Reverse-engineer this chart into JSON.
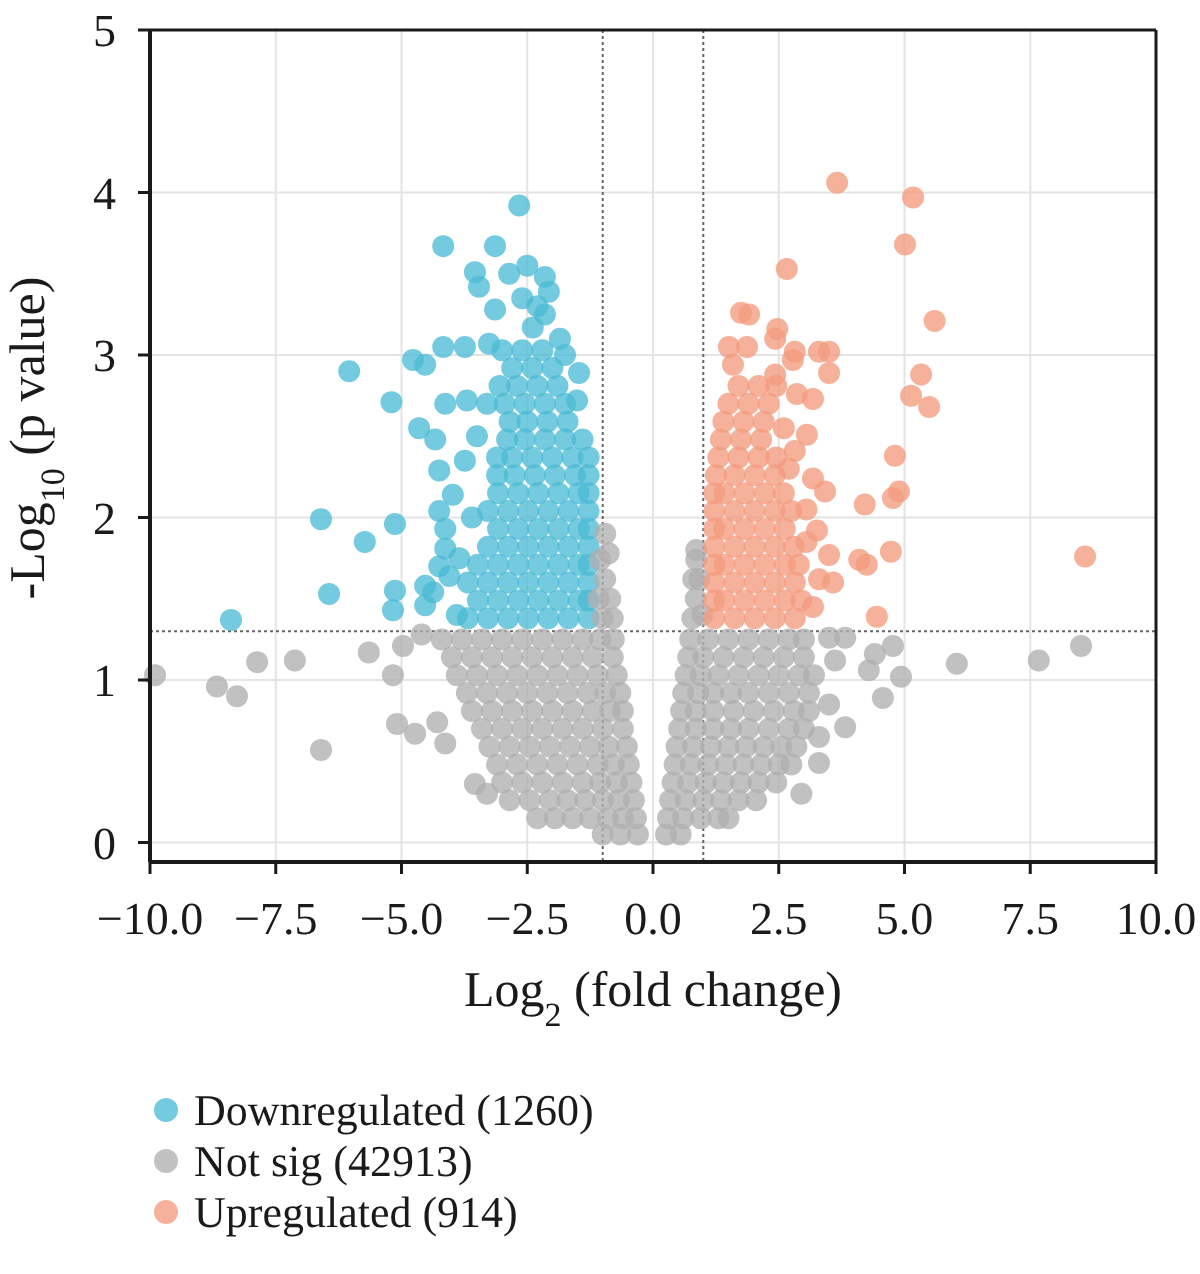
{
  "chart_data": {
    "type": "scatter",
    "xlabel": "Log$_{2}$ (fold change)",
    "ylabel": "-Log$_{10}$ (p value)",
    "xlim": [
      -10,
      10
    ],
    "ylim": [
      -0.12,
      5
    ],
    "xticks": [
      {
        "value": -10,
        "label": "−10.0"
      },
      {
        "value": -7.5,
        "label": "−7.5"
      },
      {
        "value": -5,
        "label": "−5.0"
      },
      {
        "value": -2.5,
        "label": "−2.5"
      },
      {
        "value": 0,
        "label": "0.0"
      },
      {
        "value": 2.5,
        "label": "2.5"
      },
      {
        "value": 5,
        "label": "5.0"
      },
      {
        "value": 7.5,
        "label": "7.5"
      },
      {
        "value": 10,
        "label": "10.0"
      }
    ],
    "yticks": [
      0,
      1,
      2,
      3,
      4,
      5
    ],
    "grid": true,
    "legend": "bottom left",
    "marker": "circle",
    "ref_lines": [
      {
        "axis": "x",
        "value": -1,
        "color": "#666666",
        "line_style": "dotted"
      },
      {
        "axis": "x",
        "value": 1,
        "color": "#666666",
        "line_style": "dotted"
      },
      {
        "axis": "y",
        "value": 1.3,
        "color": "#666666",
        "line_style": "dotted"
      }
    ],
    "series": [
      {
        "name": "Downregulated (1260)",
        "color": "#4dbbd5",
        "x": [
          -1.28,
          -1.68,
          -2.08,
          -2.48,
          -2.88,
          -3.28,
          -3.68,
          -1.28,
          -1.48,
          -1.88,
          -2.28,
          -2.68,
          -3.08,
          -3.48,
          -1.28,
          -1.68,
          -2.08,
          -2.48,
          -2.88,
          -3.28,
          -3.68,
          -1.28,
          -1.48,
          -1.88,
          -2.28,
          -2.68,
          -3.08,
          -3.48,
          -1.28,
          -1.68,
          -2.08,
          -2.48,
          -2.88,
          -3.28,
          -1.28,
          -1.48,
          -1.88,
          -2.28,
          -2.68,
          -3.08,
          -1.28,
          -1.68,
          -2.08,
          -2.48,
          -2.88,
          -3.28,
          -1.28,
          -1.48,
          -1.88,
          -2.28,
          -2.68,
          -3.08,
          -1.28,
          -1.55,
          -1.95,
          -2.35,
          -2.75,
          -3.1,
          -1.28,
          -1.6,
          -2.0,
          -2.4,
          -2.8,
          -3.1,
          -1.4,
          -1.75,
          -2.15,
          -2.55,
          -2.9,
          -1.7,
          -2.1,
          -2.5,
          -2.85,
          -1.75,
          -2.15,
          -2.55,
          -2.95,
          -3.3,
          -1.9,
          -2.3,
          -2.7,
          -3.05,
          -2.0,
          -2.4,
          -2.8,
          -2.2,
          -2.6,
          -3.0,
          -2.66,
          -4.17,
          -3.14,
          -3.54,
          -3.46,
          -2.86,
          -2.5,
          -2.15,
          -2.07,
          -3.14,
          -2.15,
          -2.39,
          -2.6,
          -2.3,
          -4.17,
          -4.77,
          -4.53,
          -3.74,
          -3.26,
          -6.04,
          -5.2,
          -4.13,
          -3.7,
          -4.65,
          -4.33,
          -4.25,
          -1.47,
          -1.51,
          -1.75,
          -1.85,
          -6.6,
          -5.73,
          -5.13,
          -6.44,
          -5.13,
          -5.17,
          -4.53,
          -8.39,
          -4.25,
          -4.13,
          -4.25,
          -4.05,
          -4.37,
          -4.53,
          -4.13,
          -3.98,
          -3.74,
          -3.9,
          -3.85,
          -3.6,
          -3.5
        ],
        "values": [
          1.38,
          1.38,
          1.38,
          1.38,
          1.38,
          1.38,
          1.38,
          1.49,
          1.49,
          1.49,
          1.49,
          1.49,
          1.49,
          1.49,
          1.6,
          1.6,
          1.6,
          1.6,
          1.6,
          1.6,
          1.6,
          1.71,
          1.71,
          1.71,
          1.71,
          1.71,
          1.71,
          1.71,
          1.82,
          1.82,
          1.82,
          1.82,
          1.82,
          1.82,
          1.93,
          1.93,
          1.93,
          1.93,
          1.93,
          1.93,
          2.04,
          2.04,
          2.04,
          2.04,
          2.04,
          2.04,
          2.15,
          2.15,
          2.15,
          2.15,
          2.15,
          2.15,
          2.26,
          2.26,
          2.26,
          2.26,
          2.26,
          2.26,
          2.37,
          2.37,
          2.37,
          2.37,
          2.37,
          2.37,
          2.48,
          2.48,
          2.48,
          2.48,
          2.48,
          2.59,
          2.59,
          2.59,
          2.59,
          2.7,
          2.7,
          2.7,
          2.7,
          2.7,
          2.81,
          2.81,
          2.81,
          2.81,
          2.92,
          2.92,
          2.92,
          3.03,
          3.03,
          3.03,
          3.92,
          3.67,
          3.67,
          3.51,
          3.42,
          3.5,
          3.55,
          3.48,
          3.39,
          3.28,
          3.25,
          3.17,
          3.35,
          3.3,
          3.05,
          2.97,
          2.94,
          3.05,
          3.07,
          2.9,
          2.71,
          2.7,
          2.72,
          2.55,
          2.48,
          2.29,
          2.89,
          2.72,
          3.0,
          3.1,
          1.99,
          1.85,
          1.96,
          1.53,
          1.55,
          1.43,
          1.58,
          1.37,
          2.04,
          1.93,
          1.7,
          1.64,
          1.54,
          1.46,
          1.81,
          2.14,
          2.35,
          1.4,
          1.75,
          2.0,
          2.5
        ]
      },
      {
        "name": "Not sig (42913)",
        "color": "#b0b0b0",
        "x": [
          -4.2,
          -3.8,
          -3.4,
          -3.0,
          -2.6,
          -2.2,
          -1.8,
          -1.4,
          -1.05,
          -0.78,
          0.74,
          1.1,
          1.5,
          1.9,
          2.3,
          2.7,
          3.0,
          -4.0,
          -3.6,
          -3.2,
          -2.8,
          -2.4,
          -2.0,
          -1.6,
          -1.2,
          -0.8,
          0.7,
          1.0,
          1.4,
          1.8,
          2.2,
          2.6,
          3.0,
          -3.9,
          -3.5,
          -3.1,
          -2.7,
          -2.3,
          -1.9,
          -1.5,
          -1.1,
          -0.72,
          0.65,
          0.95,
          1.3,
          1.7,
          2.1,
          2.5,
          2.9,
          3.2,
          -3.7,
          -3.3,
          -2.9,
          -2.5,
          -2.1,
          -1.7,
          -1.3,
          -0.95,
          -0.65,
          0.6,
          0.9,
          1.2,
          1.55,
          1.9,
          2.3,
          2.7,
          3.1,
          -3.6,
          -3.2,
          -2.8,
          -2.4,
          -2.0,
          -1.6,
          -1.2,
          -0.85,
          -0.6,
          0.56,
          0.85,
          1.2,
          1.6,
          2.0,
          2.4,
          2.8,
          3.1,
          -3.4,
          -3.0,
          -2.6,
          -2.2,
          -1.8,
          -1.4,
          -1.0,
          -0.6,
          0.52,
          0.85,
          1.2,
          1.55,
          1.9,
          2.3,
          2.7,
          3.0,
          -3.25,
          -2.85,
          -2.45,
          -2.05,
          -1.65,
          -1.25,
          -0.88,
          -0.52,
          0.47,
          0.8,
          1.15,
          1.5,
          1.85,
          2.2,
          2.55,
          2.85,
          -3.1,
          -2.7,
          -2.3,
          -1.9,
          -1.5,
          -1.1,
          -0.78,
          -0.48,
          0.43,
          0.75,
          1.1,
          1.45,
          1.8,
          2.15,
          2.5,
          2.75,
          -3.0,
          -2.6,
          -2.2,
          -1.8,
          -1.4,
          -1.05,
          -0.72,
          -0.43,
          0.39,
          0.7,
          1.05,
          1.4,
          1.75,
          2.1,
          2.45,
          -2.85,
          -2.45,
          -2.05,
          -1.7,
          -1.35,
          -1.0,
          -0.68,
          -0.38,
          0.34,
          0.65,
          1.0,
          1.35,
          1.7,
          2.05,
          -2.3,
          -1.95,
          -1.6,
          -1.25,
          -0.9,
          -0.6,
          -0.34,
          0.3,
          0.6,
          0.95,
          1.3,
          1.5,
          -1.0,
          -0.65,
          -0.3,
          0.26,
          0.55,
          -9.9,
          -8.67,
          -8.27,
          -7.87,
          -7.12,
          -6.6,
          -5.65,
          -5.17,
          -5.09,
          -4.73,
          -4.97,
          -4.6,
          -4.29,
          -4.13,
          -3.54,
          -3.3,
          6.04,
          7.67,
          8.51,
          4.77,
          4.93,
          4.57,
          4.29,
          4.41,
          3.82,
          3.3,
          3.82,
          3.5,
          3.62,
          3.5,
          3.3,
          2.95,
          -1.0,
          -0.8,
          -0.85,
          -1.08,
          -0.95,
          -1.05,
          -0.88,
          -0.95,
          0.78,
          0.98,
          0.85,
          0.8,
          0.92,
          0.86,
          0.86
        ],
        "values": [
          1.25,
          1.25,
          1.25,
          1.25,
          1.25,
          1.25,
          1.25,
          1.25,
          1.25,
          1.25,
          1.25,
          1.25,
          1.25,
          1.25,
          1.25,
          1.25,
          1.25,
          1.14,
          1.14,
          1.14,
          1.14,
          1.14,
          1.14,
          1.14,
          1.14,
          1.14,
          1.14,
          1.14,
          1.14,
          1.14,
          1.14,
          1.14,
          1.14,
          1.03,
          1.03,
          1.03,
          1.03,
          1.03,
          1.03,
          1.03,
          1.03,
          1.03,
          1.03,
          1.03,
          1.03,
          1.03,
          1.03,
          1.03,
          1.03,
          1.03,
          0.92,
          0.92,
          0.92,
          0.92,
          0.92,
          0.92,
          0.92,
          0.92,
          0.92,
          0.92,
          0.92,
          0.92,
          0.92,
          0.92,
          0.92,
          0.92,
          0.92,
          0.81,
          0.81,
          0.81,
          0.81,
          0.81,
          0.81,
          0.81,
          0.81,
          0.81,
          0.81,
          0.81,
          0.81,
          0.81,
          0.81,
          0.81,
          0.81,
          0.81,
          0.7,
          0.7,
          0.7,
          0.7,
          0.7,
          0.7,
          0.7,
          0.7,
          0.7,
          0.7,
          0.7,
          0.7,
          0.7,
          0.7,
          0.7,
          0.7,
          0.59,
          0.59,
          0.59,
          0.59,
          0.59,
          0.59,
          0.59,
          0.59,
          0.59,
          0.59,
          0.59,
          0.59,
          0.59,
          0.59,
          0.59,
          0.59,
          0.48,
          0.48,
          0.48,
          0.48,
          0.48,
          0.48,
          0.48,
          0.48,
          0.48,
          0.48,
          0.48,
          0.48,
          0.48,
          0.48,
          0.48,
          0.48,
          0.37,
          0.37,
          0.37,
          0.37,
          0.37,
          0.37,
          0.37,
          0.37,
          0.37,
          0.37,
          0.37,
          0.37,
          0.37,
          0.37,
          0.37,
          0.26,
          0.26,
          0.26,
          0.26,
          0.26,
          0.26,
          0.26,
          0.26,
          0.26,
          0.26,
          0.26,
          0.26,
          0.26,
          0.26,
          0.15,
          0.15,
          0.15,
          0.15,
          0.15,
          0.15,
          0.15,
          0.15,
          0.15,
          0.15,
          0.15,
          0.15,
          0.05,
          0.05,
          0.05,
          0.05,
          0.05,
          1.03,
          0.96,
          0.9,
          1.11,
          1.12,
          0.57,
          1.17,
          1.03,
          0.73,
          0.67,
          1.21,
          1.28,
          0.74,
          0.61,
          0.36,
          0.3,
          1.1,
          1.12,
          1.21,
          1.21,
          1.02,
          0.89,
          1.06,
          1.16,
          0.71,
          0.49,
          1.26,
          1.26,
          1.12,
          0.85,
          0.65,
          0.3,
          1.38,
          1.38,
          1.5,
          1.5,
          1.62,
          1.74,
          1.78,
          1.9,
          1.38,
          1.4,
          1.5,
          1.62,
          1.62,
          1.74,
          1.8
        ]
      },
      {
        "name": "Upregulated (914)",
        "color": "#f39b7f",
        "x": [
          1.22,
          1.62,
          2.02,
          2.42,
          2.82,
          1.22,
          1.42,
          1.82,
          2.22,
          2.62,
          2.95,
          1.22,
          1.62,
          2.02,
          2.42,
          2.82,
          1.22,
          1.42,
          1.82,
          2.22,
          2.62,
          2.9,
          1.22,
          1.62,
          2.02,
          2.42,
          2.8,
          1.22,
          1.42,
          1.82,
          2.22,
          2.62,
          1.22,
          1.62,
          2.02,
          2.42,
          2.75,
          1.22,
          1.42,
          1.82,
          2.22,
          2.6,
          1.25,
          1.62,
          2.02,
          2.42,
          1.3,
          1.7,
          2.1,
          2.45,
          1.35,
          1.75,
          2.15,
          1.4,
          1.8,
          2.2,
          1.5,
          1.9,
          2.3,
          1.7,
          2.1,
          2.45,
          3.66,
          5.17,
          5.01,
          2.66,
          5.6,
          5.33,
          5.13,
          5.49,
          4.81,
          4.89,
          4.77,
          4.21,
          4.73,
          8.59,
          4.45,
          4.1,
          4.25,
          1.75,
          1.91,
          2.47,
          2.43,
          1.51,
          1.87,
          3.3,
          3.5,
          2.82,
          2.78,
          3.5,
          1.59,
          2.43,
          2.86,
          3.18,
          3.06,
          2.82,
          3.18,
          3.42,
          3.26,
          3.58,
          3.18,
          3.5,
          3.3,
          3.05,
          3.05,
          2.7,
          2.6
        ],
        "values": [
          1.38,
          1.38,
          1.38,
          1.38,
          1.38,
          1.49,
          1.49,
          1.49,
          1.49,
          1.49,
          1.49,
          1.6,
          1.6,
          1.6,
          1.6,
          1.6,
          1.71,
          1.71,
          1.71,
          1.71,
          1.71,
          1.71,
          1.82,
          1.82,
          1.82,
          1.82,
          1.82,
          1.93,
          1.93,
          1.93,
          1.93,
          1.93,
          2.04,
          2.04,
          2.04,
          2.04,
          2.04,
          2.15,
          2.15,
          2.15,
          2.15,
          2.15,
          2.26,
          2.26,
          2.26,
          2.26,
          2.37,
          2.37,
          2.37,
          2.37,
          2.48,
          2.48,
          2.48,
          2.59,
          2.59,
          2.59,
          2.7,
          2.7,
          2.7,
          2.81,
          2.81,
          2.81,
          4.06,
          3.97,
          3.68,
          3.53,
          3.21,
          2.88,
          2.75,
          2.68,
          2.38,
          2.16,
          2.12,
          2.08,
          1.79,
          1.76,
          1.39,
          1.74,
          1.71,
          3.26,
          3.25,
          3.16,
          3.1,
          3.05,
          3.05,
          3.02,
          3.02,
          3.02,
          2.97,
          2.89,
          2.94,
          2.88,
          2.76,
          2.73,
          2.51,
          2.41,
          2.24,
          2.16,
          1.92,
          1.6,
          1.45,
          1.77,
          1.62,
          1.85,
          2.05,
          2.3,
          2.55
        ]
      }
    ]
  }
}
